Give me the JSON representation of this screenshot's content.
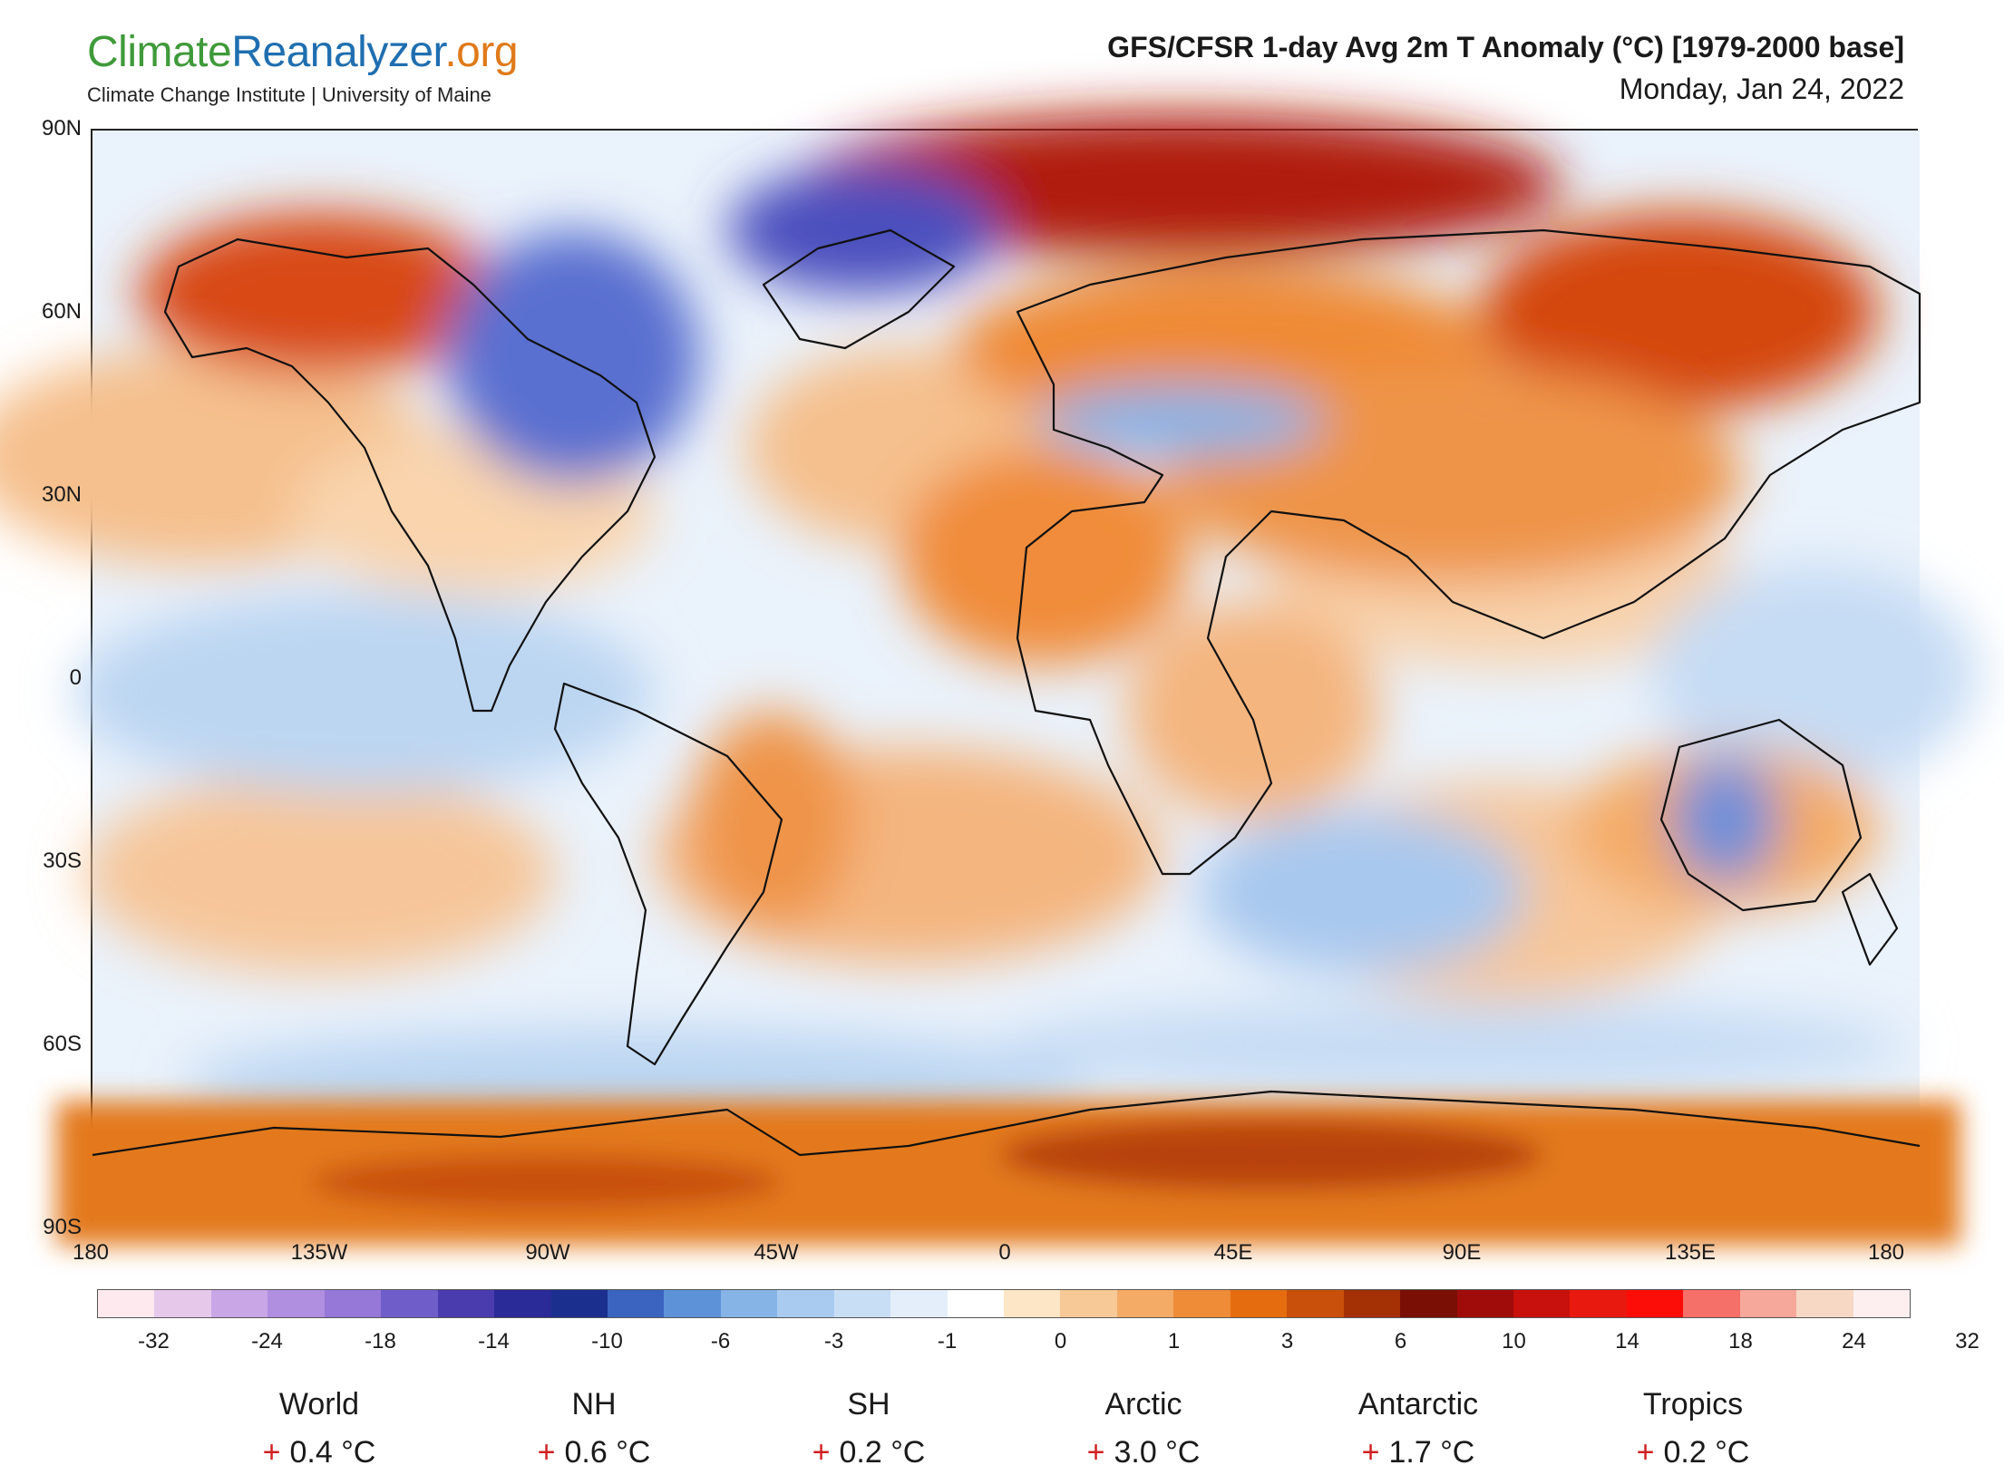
{
  "header": {
    "logo_part1": "Climate",
    "logo_part2": "Reanalyzer",
    "logo_part3": ".org",
    "logo_subtitle": "Climate Change Institute | University of Maine",
    "title": "GFS/CFSR 1-day Avg 2m T Anomaly (°C) [1979-2000 base]",
    "date": "Monday, Jan 24, 2022"
  },
  "map": {
    "lat_labels": [
      "90N",
      "60N",
      "30N",
      "0",
      "30S",
      "60S",
      "90S"
    ],
    "lon_labels": [
      "180",
      "135W",
      "90W",
      "45W",
      "0",
      "45E",
      "90E",
      "135E",
      "180"
    ]
  },
  "colorbar": {
    "colors": [
      "#fde9ee",
      "#e6c8eb",
      "#c9a6e6",
      "#b08ee0",
      "#9678d8",
      "#6f5dc9",
      "#4a3cae",
      "#2a2a98",
      "#1a2f8e",
      "#3a64c0",
      "#5e92d8",
      "#86b4e6",
      "#aacbf0",
      "#c8def5",
      "#e3eefa",
      "#ffffff",
      "#fde6c6",
      "#f7c996",
      "#f4ab66",
      "#ee8c38",
      "#e56d10",
      "#c8500a",
      "#a43006",
      "#7a1005",
      "#a00c0a",
      "#c8100c",
      "#e8190f",
      "#fd0d07",
      "#f57068",
      "#f6a89b",
      "#f7d8c4",
      "#fdeef0"
    ],
    "tick_labels": [
      "-32",
      "-24",
      "-18",
      "-14",
      "-10",
      "-6",
      "-3",
      "-1",
      "0",
      "1",
      "3",
      "6",
      "10",
      "14",
      "18",
      "24",
      "32"
    ]
  },
  "stats": [
    {
      "name": "World",
      "sign": "+",
      "value": "0.4 °C"
    },
    {
      "name": "NH",
      "sign": "+",
      "value": "0.6 °C"
    },
    {
      "name": "SH",
      "sign": "+",
      "value": "0.2 °C"
    },
    {
      "name": "Arctic",
      "sign": "+",
      "value": "3.0 °C"
    },
    {
      "name": "Antarctic",
      "sign": "+",
      "value": "1.7 °C"
    },
    {
      "name": "Tropics",
      "sign": "+",
      "value": "0.2 °C"
    }
  ]
}
